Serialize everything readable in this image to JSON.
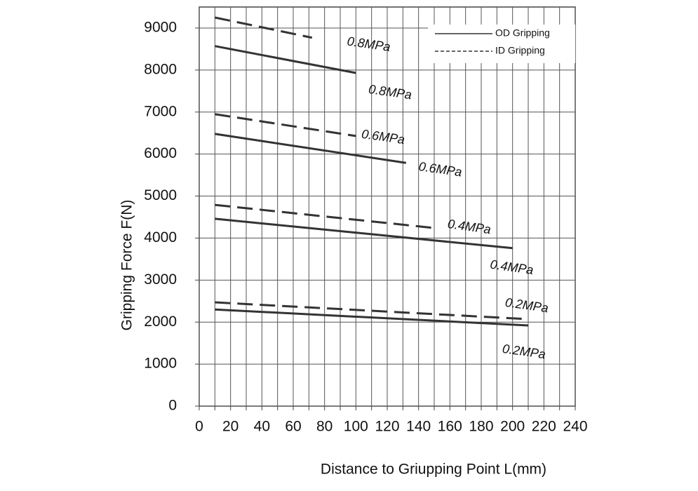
{
  "chart_data": {
    "type": "line",
    "xlabel": "Distance to Griupping Point L(mm)",
    "ylabel": "Gripping Force F(N)",
    "xlim": [
      0,
      240
    ],
    "ylim": [
      0,
      9500
    ],
    "xticks": [
      0,
      20,
      40,
      60,
      80,
      100,
      120,
      140,
      160,
      180,
      200,
      220,
      240
    ],
    "xminorticks": [
      10,
      30,
      50,
      70,
      90,
      110,
      130,
      150,
      170,
      190,
      210,
      230
    ],
    "yticks": [
      0,
      1000,
      2000,
      3000,
      4000,
      5000,
      6000,
      7000,
      8000,
      9000
    ],
    "grid": true,
    "color": "#333333",
    "legend": [
      {
        "label": "OD Gripping",
        "dashed": false
      },
      {
        "label": "ID Gripping",
        "dashed": true
      }
    ],
    "legend_position": "upper right",
    "series": [
      {
        "label": "0.8MPa",
        "dashed": true,
        "x": [
          10,
          72
        ],
        "values": [
          9250,
          8770
        ]
      },
      {
        "label": "0.8MPa",
        "dashed": false,
        "x": [
          10,
          100
        ],
        "values": [
          8570,
          7930
        ]
      },
      {
        "label": "0.6MPa",
        "dashed": true,
        "x": [
          10,
          100
        ],
        "values": [
          6950,
          6430
        ]
      },
      {
        "label": "0.6MPa",
        "dashed": false,
        "x": [
          10,
          132
        ],
        "values": [
          6480,
          5790
        ]
      },
      {
        "label": "0.4MPa",
        "dashed": true,
        "x": [
          10,
          150
        ],
        "values": [
          4790,
          4240
        ]
      },
      {
        "label": "0.4MPa",
        "dashed": false,
        "x": [
          10,
          200
        ],
        "values": [
          4460,
          3760
        ]
      },
      {
        "label": "0.2MPa",
        "dashed": true,
        "x": [
          10,
          210
        ],
        "values": [
          2470,
          2070
        ]
      },
      {
        "label": "0.2MPa",
        "dashed": false,
        "x": [
          10,
          210
        ],
        "values": [
          2300,
          1920
        ]
      }
    ]
  }
}
